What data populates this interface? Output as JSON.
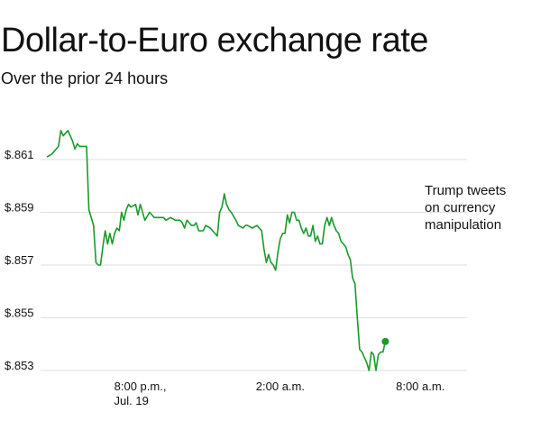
{
  "title": "Dollar-to-Euro exchange rate",
  "subtitle": "Over the prior 24 hours",
  "colors": {
    "line": "#1a9a2a",
    "grid": "#dddddd",
    "text": "#111111"
  },
  "chart_data": {
    "type": "line",
    "title": "Dollar-to-Euro exchange rate",
    "subtitle": "Over the prior 24 hours",
    "y_ticks": [
      {
        "value": 0.861,
        "label": "$.861"
      },
      {
        "value": 0.859,
        "label": "$.859"
      },
      {
        "value": 0.857,
        "label": "$.857"
      },
      {
        "value": 0.855,
        "label": "$.855"
      },
      {
        "value": 0.853,
        "label": "$.853"
      }
    ],
    "ylim": [
      0.853,
      0.861
    ],
    "x_ticks": [
      {
        "hour": 4.0,
        "lines": [
          "8:00 p.m.,",
          "Jul. 19"
        ]
      },
      {
        "hour": 10.0,
        "lines": [
          "2:00 a.m."
        ]
      },
      {
        "hour": 16.0,
        "lines": [
          "8:00 a.m."
        ]
      }
    ],
    "x_axis_start": "4:00 p.m., Jul. 19",
    "x_axis_unit": "hours",
    "xlim": [
      0,
      18
    ],
    "annotation": {
      "lines": [
        "Trump tweets",
        "on currency",
        "manipulation"
      ]
    },
    "grid": true,
    "series": [
      {
        "points": [
          [
            0.0,
            0.8611
          ],
          [
            0.2,
            0.8612
          ],
          [
            0.5,
            0.8615
          ],
          [
            0.6,
            0.8621
          ],
          [
            0.7,
            0.8619
          ],
          [
            0.9,
            0.8621
          ],
          [
            1.1,
            0.8617
          ],
          [
            1.2,
            0.8614
          ],
          [
            1.3,
            0.8616
          ],
          [
            1.4,
            0.8615
          ],
          [
            1.5,
            0.8615
          ],
          [
            1.7,
            0.8615
          ],
          [
            1.8,
            0.8591
          ],
          [
            2.0,
            0.8585
          ],
          [
            2.1,
            0.8571
          ],
          [
            2.2,
            0.857
          ],
          [
            2.3,
            0.857
          ],
          [
            2.4,
            0.8577
          ],
          [
            2.5,
            0.8583
          ],
          [
            2.6,
            0.8578
          ],
          [
            2.7,
            0.8582
          ],
          [
            2.8,
            0.8578
          ],
          [
            2.9,
            0.8582
          ],
          [
            3.0,
            0.8584
          ],
          [
            3.1,
            0.8583
          ],
          [
            3.2,
            0.859
          ],
          [
            3.3,
            0.8587
          ],
          [
            3.4,
            0.8591
          ],
          [
            3.5,
            0.8593
          ],
          [
            3.6,
            0.8592
          ],
          [
            3.8,
            0.8593
          ],
          [
            3.9,
            0.8589
          ],
          [
            4.0,
            0.8593
          ],
          [
            4.2,
            0.8587
          ],
          [
            4.4,
            0.859
          ],
          [
            4.6,
            0.8588
          ],
          [
            4.8,
            0.8588
          ],
          [
            5.0,
            0.8588
          ],
          [
            5.1,
            0.8587
          ],
          [
            5.3,
            0.8588
          ],
          [
            5.5,
            0.8587
          ],
          [
            5.7,
            0.8587
          ],
          [
            5.8,
            0.8586
          ],
          [
            5.9,
            0.8584
          ],
          [
            6.0,
            0.8587
          ],
          [
            6.2,
            0.8585
          ],
          [
            6.3,
            0.8585
          ],
          [
            6.4,
            0.8586
          ],
          [
            6.5,
            0.8583
          ],
          [
            6.7,
            0.8583
          ],
          [
            6.8,
            0.8585
          ],
          [
            7.0,
            0.8584
          ],
          [
            7.1,
            0.8583
          ],
          [
            7.2,
            0.8582
          ],
          [
            7.3,
            0.8581
          ],
          [
            7.4,
            0.859
          ],
          [
            7.5,
            0.8592
          ],
          [
            7.6,
            0.8597
          ],
          [
            7.7,
            0.8593
          ],
          [
            7.8,
            0.8591
          ],
          [
            7.9,
            0.859
          ],
          [
            8.1,
            0.8587
          ],
          [
            8.2,
            0.8585
          ],
          [
            8.4,
            0.8584
          ],
          [
            8.5,
            0.8585
          ],
          [
            8.6,
            0.8585
          ],
          [
            8.8,
            0.8584
          ],
          [
            9.0,
            0.8585
          ],
          [
            9.2,
            0.8583
          ],
          [
            9.3,
            0.8576
          ],
          [
            9.4,
            0.8571
          ],
          [
            9.5,
            0.8574
          ],
          [
            9.6,
            0.8571
          ],
          [
            9.7,
            0.857
          ],
          [
            9.8,
            0.8568
          ],
          [
            9.9,
            0.8575
          ],
          [
            10.0,
            0.858
          ],
          [
            10.1,
            0.8582
          ],
          [
            10.2,
            0.8582
          ],
          [
            10.3,
            0.8589
          ],
          [
            10.4,
            0.8586
          ],
          [
            10.5,
            0.859
          ],
          [
            10.6,
            0.859
          ],
          [
            10.7,
            0.8587
          ],
          [
            10.8,
            0.8587
          ],
          [
            10.9,
            0.8584
          ],
          [
            11.0,
            0.8582
          ],
          [
            11.1,
            0.8584
          ],
          [
            11.2,
            0.8581
          ],
          [
            11.3,
            0.8581
          ],
          [
            11.4,
            0.8585
          ],
          [
            11.5,
            0.8579
          ],
          [
            11.6,
            0.8581
          ],
          [
            11.7,
            0.8578
          ],
          [
            11.8,
            0.8578
          ],
          [
            11.9,
            0.8585
          ],
          [
            12.0,
            0.8588
          ],
          [
            12.1,
            0.8585
          ],
          [
            12.2,
            0.8588
          ],
          [
            12.3,
            0.8585
          ],
          [
            12.4,
            0.8583
          ],
          [
            12.5,
            0.8582
          ],
          [
            12.6,
            0.8579
          ],
          [
            12.7,
            0.8578
          ],
          [
            12.8,
            0.8577
          ],
          [
            12.9,
            0.8574
          ],
          [
            13.0,
            0.8572
          ],
          [
            13.1,
            0.8565
          ],
          [
            13.2,
            0.8563
          ],
          [
            13.3,
            0.855
          ],
          [
            13.4,
            0.8538
          ],
          [
            13.5,
            0.8537
          ],
          [
            13.6,
            0.8535
          ],
          [
            13.7,
            0.8533
          ],
          [
            13.8,
            0.853
          ],
          [
            13.9,
            0.8537
          ],
          [
            14.0,
            0.8536
          ],
          [
            14.1,
            0.853
          ],
          [
            14.2,
            0.8536
          ],
          [
            14.3,
            0.8537
          ],
          [
            14.4,
            0.8537
          ],
          [
            14.5,
            0.8541
          ]
        ]
      }
    ]
  }
}
